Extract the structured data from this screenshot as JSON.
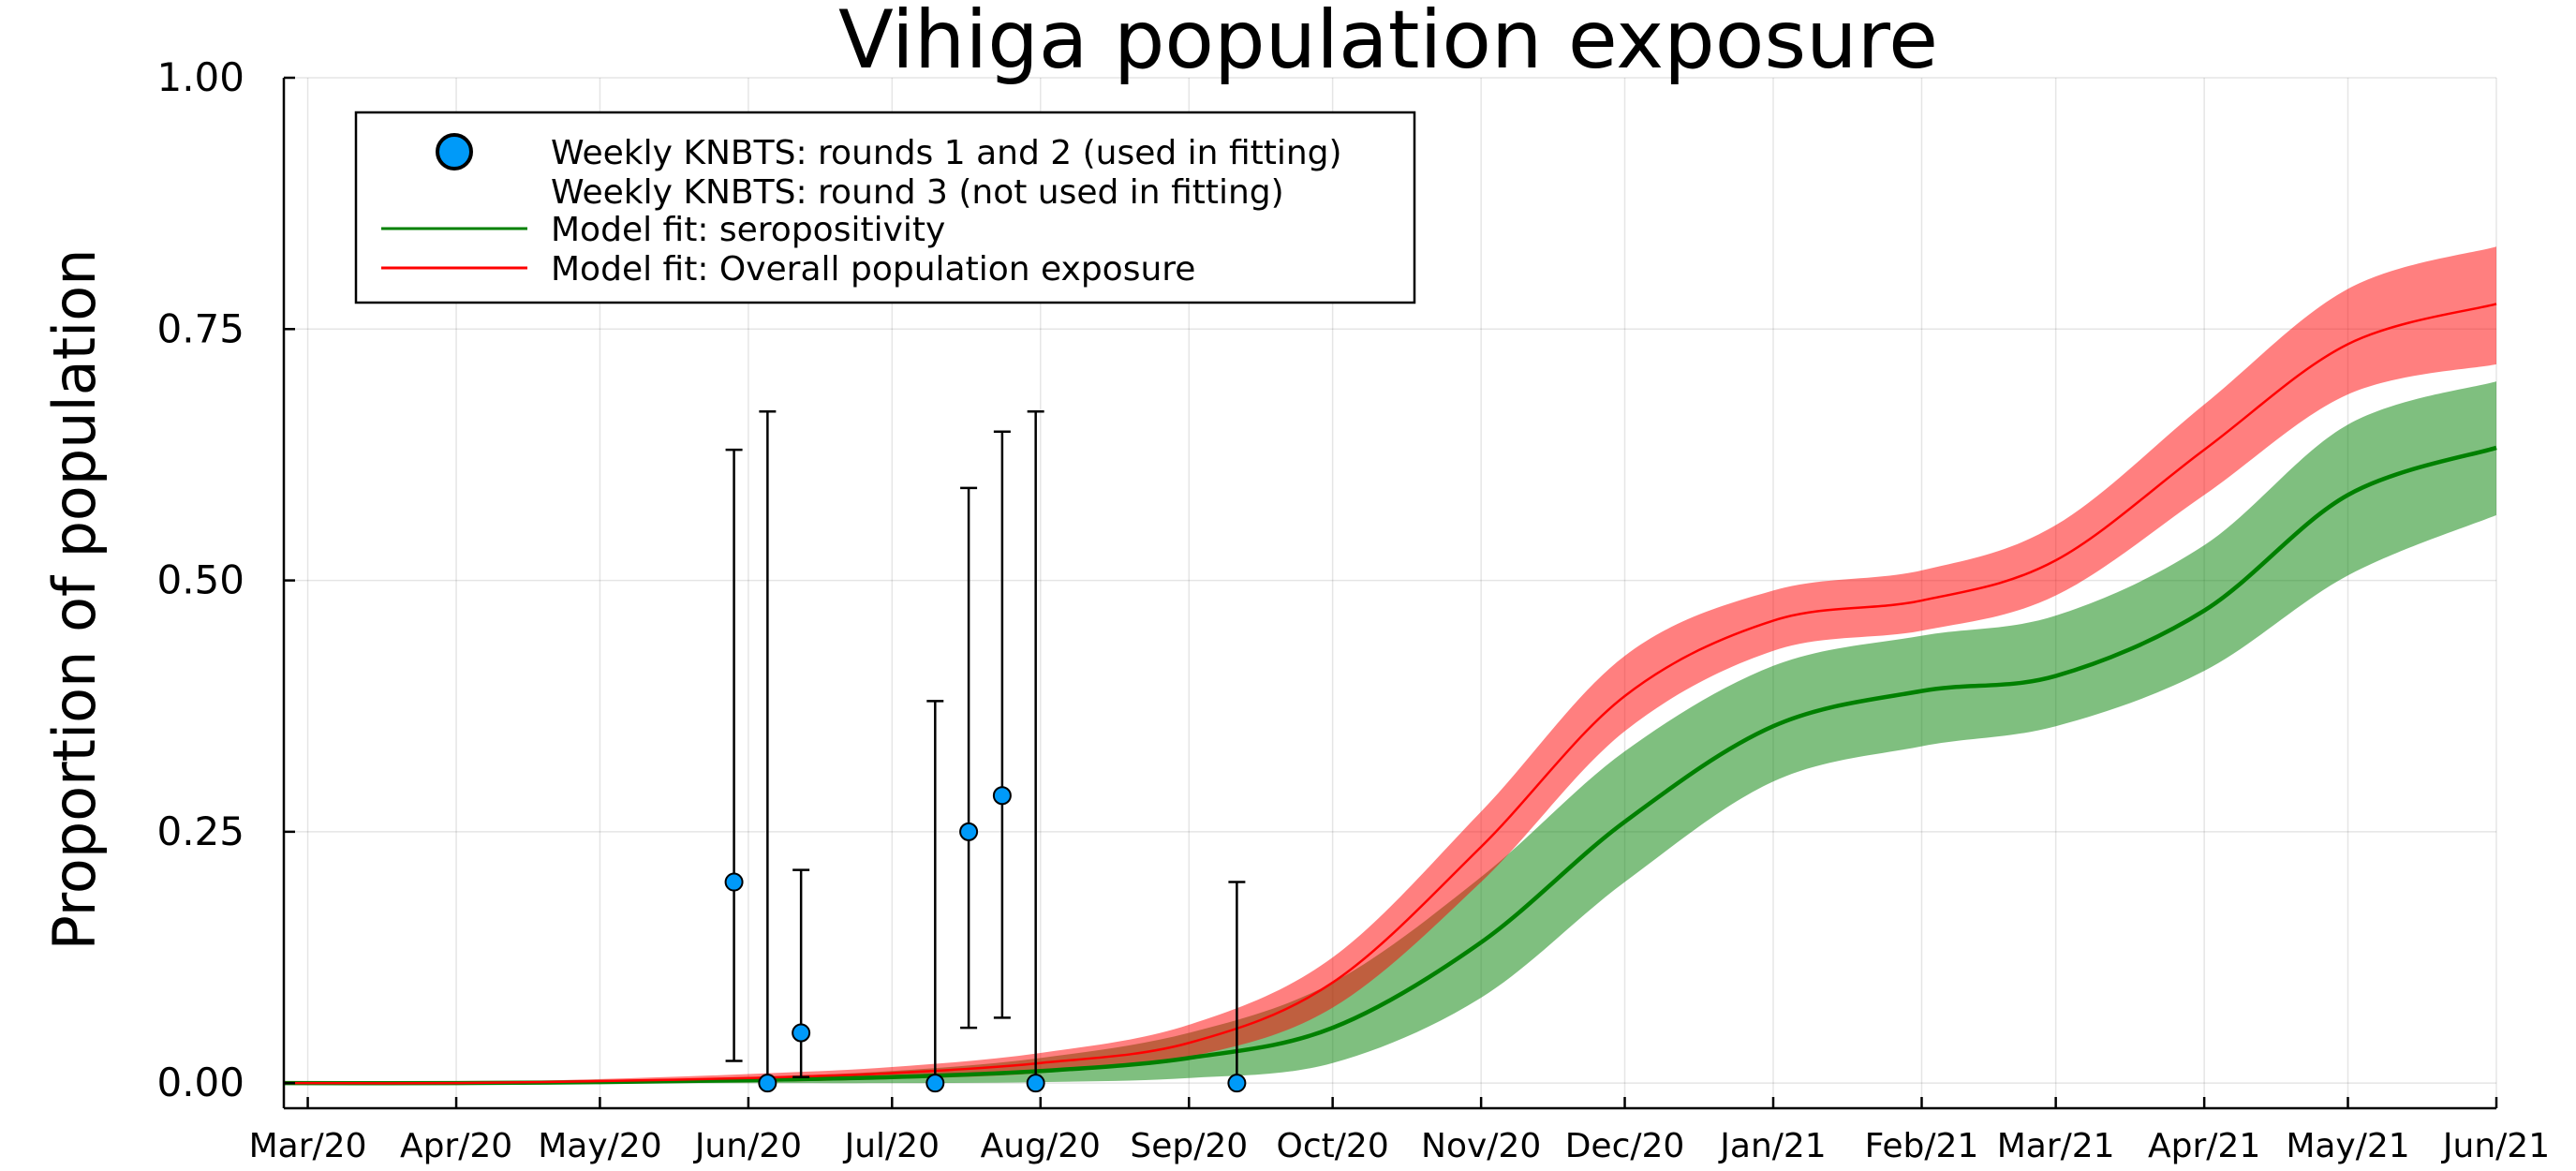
{
  "chart_data": {
    "type": "line",
    "title": "Vihiga population exposure",
    "xlabel": "",
    "ylabel": "Proportion of population",
    "x_axis_type": "date",
    "xlim": [
      "2020-02-25",
      "2021-06-01"
    ],
    "ylim": [
      -0.025,
      1.0
    ],
    "x_ticks": [
      {
        "date": "2020-03-01",
        "label": "Mar/20"
      },
      {
        "date": "2020-04-01",
        "label": "Apr/20"
      },
      {
        "date": "2020-05-01",
        "label": "May/20"
      },
      {
        "date": "2020-06-01",
        "label": "Jun/20"
      },
      {
        "date": "2020-07-01",
        "label": "Jul/20"
      },
      {
        "date": "2020-08-01",
        "label": "Aug/20"
      },
      {
        "date": "2020-09-01",
        "label": "Sep/20"
      },
      {
        "date": "2020-10-01",
        "label": "Oct/20"
      },
      {
        "date": "2020-11-01",
        "label": "Nov/20"
      },
      {
        "date": "2020-12-01",
        "label": "Dec/20"
      },
      {
        "date": "2021-01-01",
        "label": "Jan/21"
      },
      {
        "date": "2021-02-01",
        "label": "Feb/21"
      },
      {
        "date": "2021-03-01",
        "label": "Mar/21"
      },
      {
        "date": "2021-04-01",
        "label": "Apr/21"
      },
      {
        "date": "2021-05-01",
        "label": "May/21"
      },
      {
        "date": "2021-06-01",
        "label": "Jun/21"
      }
    ],
    "y_ticks": [
      {
        "value": 0.0,
        "label": "0.00"
      },
      {
        "value": 0.25,
        "label": "0.25"
      },
      {
        "value": 0.5,
        "label": "0.50"
      },
      {
        "value": 0.75,
        "label": "0.75"
      },
      {
        "value": 1.0,
        "label": "1.00"
      }
    ],
    "grid": true,
    "legend_position": "top-left",
    "series": [
      {
        "name": "Weekly KNBTS: rounds 1 and 2 (used in fitting)",
        "kind": "scatter-errorbar",
        "color": "#009af9",
        "points": [
          {
            "x": "2020-05-29",
            "y": 0.2,
            "lo": 0.022,
            "hi": 0.63
          },
          {
            "x": "2020-06-05",
            "y": 0.0,
            "lo": 0.0,
            "hi": 0.668
          },
          {
            "x": "2020-06-12",
            "y": 0.05,
            "lo": 0.006,
            "hi": 0.212
          },
          {
            "x": "2020-07-10",
            "y": 0.0,
            "lo": 0.0,
            "hi": 0.38
          },
          {
            "x": "2020-07-17",
            "y": 0.25,
            "lo": 0.055,
            "hi": 0.592
          },
          {
            "x": "2020-07-24",
            "y": 0.286,
            "lo": 0.065,
            "hi": 0.648
          },
          {
            "x": "2020-07-31",
            "y": 0.0,
            "lo": 0.0,
            "hi": 0.668
          },
          {
            "x": "2020-09-11",
            "y": 0.0,
            "lo": 0.0,
            "hi": 0.2
          }
        ]
      },
      {
        "name": "Weekly KNBTS: round 3 (not used in fitting)",
        "kind": "scatter",
        "color": "#e26f46",
        "points": []
      },
      {
        "name": "Model fit: seropositivity",
        "kind": "line-band",
        "color": "#008000",
        "band_color": "#008000",
        "points": [
          {
            "x": "2020-02-25",
            "y": 0.0,
            "lo": 0.0,
            "hi": 0.0
          },
          {
            "x": "2020-04-01",
            "y": 0.0,
            "lo": 0.0,
            "hi": 0.001
          },
          {
            "x": "2020-05-01",
            "y": 0.001,
            "lo": 0.0,
            "hi": 0.003
          },
          {
            "x": "2020-06-01",
            "y": 0.003,
            "lo": 0.0,
            "hi": 0.006
          },
          {
            "x": "2020-07-01",
            "y": 0.006,
            "lo": 0.0,
            "hi": 0.012
          },
          {
            "x": "2020-08-01",
            "y": 0.012,
            "lo": 0.001,
            "hi": 0.025
          },
          {
            "x": "2020-09-01",
            "y": 0.025,
            "lo": 0.005,
            "hi": 0.05
          },
          {
            "x": "2020-10-01",
            "y": 0.055,
            "lo": 0.02,
            "hi": 0.1
          },
          {
            "x": "2020-11-01",
            "y": 0.14,
            "lo": 0.085,
            "hi": 0.205
          },
          {
            "x": "2020-12-01",
            "y": 0.26,
            "lo": 0.2,
            "hi": 0.33
          },
          {
            "x": "2021-01-01",
            "y": 0.355,
            "lo": 0.3,
            "hi": 0.415
          },
          {
            "x": "2021-02-01",
            "y": 0.39,
            "lo": 0.335,
            "hi": 0.445
          },
          {
            "x": "2021-03-01",
            "y": 0.405,
            "lo": 0.355,
            "hi": 0.465
          },
          {
            "x": "2021-04-01",
            "y": 0.47,
            "lo": 0.41,
            "hi": 0.535
          },
          {
            "x": "2021-05-01",
            "y": 0.585,
            "lo": 0.505,
            "hi": 0.655
          },
          {
            "x": "2021-06-01",
            "y": 0.632,
            "lo": 0.565,
            "hi": 0.698
          }
        ]
      },
      {
        "name": "Model fit: Overall population exposure",
        "kind": "line-band",
        "color": "#ff0000",
        "band_color": "#ff0000",
        "points": [
          {
            "x": "2020-02-25",
            "y": 0.0,
            "lo": 0.0,
            "hi": 0.0
          },
          {
            "x": "2020-04-01",
            "y": 0.0,
            "lo": 0.0,
            "hi": 0.001
          },
          {
            "x": "2020-05-01",
            "y": 0.002,
            "lo": 0.0,
            "hi": 0.004
          },
          {
            "x": "2020-06-01",
            "y": 0.005,
            "lo": 0.001,
            "hi": 0.009
          },
          {
            "x": "2020-07-01",
            "y": 0.01,
            "lo": 0.004,
            "hi": 0.016
          },
          {
            "x": "2020-08-01",
            "y": 0.02,
            "lo": 0.01,
            "hi": 0.03
          },
          {
            "x": "2020-09-01",
            "y": 0.04,
            "lo": 0.026,
            "hi": 0.058
          },
          {
            "x": "2020-10-01",
            "y": 0.1,
            "lo": 0.075,
            "hi": 0.125
          },
          {
            "x": "2020-11-01",
            "y": 0.235,
            "lo": 0.2,
            "hi": 0.27
          },
          {
            "x": "2020-12-01",
            "y": 0.385,
            "lo": 0.35,
            "hi": 0.425
          },
          {
            "x": "2021-01-01",
            "y": 0.46,
            "lo": 0.43,
            "hi": 0.49
          },
          {
            "x": "2021-02-01",
            "y": 0.48,
            "lo": 0.45,
            "hi": 0.51
          },
          {
            "x": "2021-03-01",
            "y": 0.52,
            "lo": 0.485,
            "hi": 0.555
          },
          {
            "x": "2021-04-01",
            "y": 0.63,
            "lo": 0.585,
            "hi": 0.675
          },
          {
            "x": "2021-05-01",
            "y": 0.735,
            "lo": 0.685,
            "hi": 0.79
          },
          {
            "x": "2021-06-01",
            "y": 0.775,
            "lo": 0.715,
            "hi": 0.832
          }
        ]
      }
    ]
  }
}
